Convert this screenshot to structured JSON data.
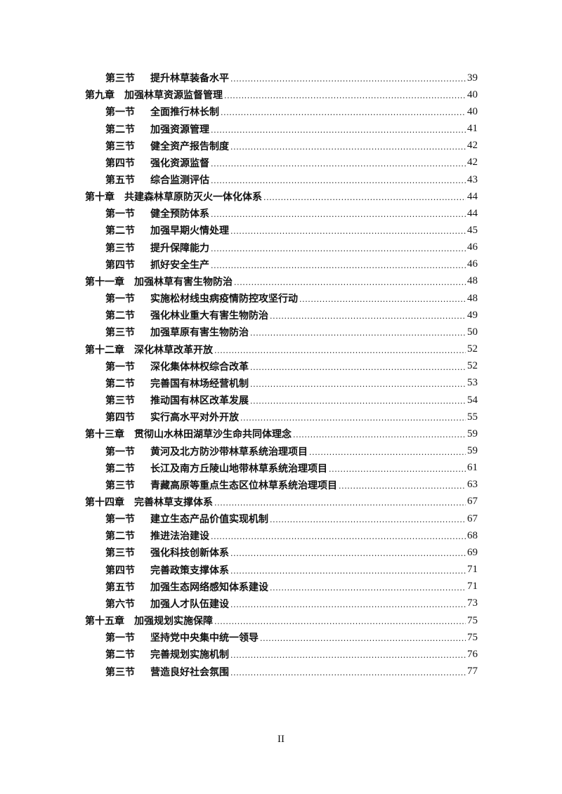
{
  "toc": [
    {
      "level": "section",
      "label": "第三节",
      "title": "提升林草装备水平",
      "page": "39"
    },
    {
      "level": "chapter",
      "label": "第九章",
      "title": "加强林草资源监督管理",
      "page": "40"
    },
    {
      "level": "section",
      "label": "第一节",
      "title": "全面推行林长制",
      "page": "40"
    },
    {
      "level": "section",
      "label": "第二节",
      "title": "加强资源管理",
      "page": "41"
    },
    {
      "level": "section",
      "label": "第三节",
      "title": "健全资产报告制度",
      "page": "42"
    },
    {
      "level": "section",
      "label": "第四节",
      "title": "强化资源监督",
      "page": "42"
    },
    {
      "level": "section",
      "label": "第五节",
      "title": "综合监测评估",
      "page": "43"
    },
    {
      "level": "chapter",
      "label": "第十章",
      "title": "共建森林草原防灭火一体化体系",
      "page": "44"
    },
    {
      "level": "section",
      "label": "第一节",
      "title": "健全预防体系",
      "page": "44"
    },
    {
      "level": "section",
      "label": "第二节",
      "title": "加强早期火情处理",
      "page": "45"
    },
    {
      "level": "section",
      "label": "第三节",
      "title": "提升保障能力",
      "page": "46"
    },
    {
      "level": "section",
      "label": "第四节",
      "title": "抓好安全生产",
      "page": "46"
    },
    {
      "level": "chapter",
      "label": "第十一章",
      "title": "加强林草有害生物防治",
      "page": "48"
    },
    {
      "level": "section",
      "label": "第一节",
      "title": "实施松材线虫病疫情防控攻坚行动",
      "page": "48"
    },
    {
      "level": "section",
      "label": "第二节",
      "title": "强化林业重大有害生物防治",
      "page": "49"
    },
    {
      "level": "section",
      "label": "第三节",
      "title": "加强草原有害生物防治",
      "page": "50"
    },
    {
      "level": "chapter",
      "label": "第十二章",
      "title": "深化林草改革开放",
      "page": "52"
    },
    {
      "level": "section",
      "label": "第一节",
      "title": "深化集体林权综合改革",
      "page": "52"
    },
    {
      "level": "section",
      "label": "第二节",
      "title": "完善国有林场经营机制",
      "page": "53"
    },
    {
      "level": "section",
      "label": "第三节",
      "title": "推动国有林区改革发展",
      "page": "54"
    },
    {
      "level": "section",
      "label": "第四节",
      "title": "实行高水平对外开放",
      "page": "55"
    },
    {
      "level": "chapter",
      "label": "第十三章",
      "title": "贯彻山水林田湖草沙生命共同体理念",
      "page": "59"
    },
    {
      "level": "section",
      "label": "第一节",
      "title": "黄河及北方防沙带林草系统治理项目",
      "page": "59"
    },
    {
      "level": "section",
      "label": "第二节",
      "title": "长江及南方丘陵山地带林草系统治理项目",
      "page": "61"
    },
    {
      "level": "section",
      "label": "第三节",
      "title": "青藏高原等重点生态区位林草系统治理项目",
      "page": "63"
    },
    {
      "level": "chapter",
      "label": "第十四章",
      "title": "完善林草支撑体系",
      "page": "67"
    },
    {
      "level": "section",
      "label": "第一节",
      "title": "建立生态产品价值实现机制",
      "page": "67"
    },
    {
      "level": "section",
      "label": "第二节",
      "title": "推进法治建设",
      "page": "68"
    },
    {
      "level": "section",
      "label": "第三节",
      "title": "强化科技创新体系",
      "page": "69"
    },
    {
      "level": "section",
      "label": "第四节",
      "title": "完善政策支撑体系",
      "page": "71"
    },
    {
      "level": "section",
      "label": "第五节",
      "title": "加强生态网络感知体系建设",
      "page": "71"
    },
    {
      "level": "section",
      "label": "第六节",
      "title": "加强人才队伍建设",
      "page": "73"
    },
    {
      "level": "chapter",
      "label": "第十五章",
      "title": "加强规划实施保障",
      "page": "75"
    },
    {
      "level": "section",
      "label": "第一节",
      "title": "坚持党中央集中统一领导",
      "page": "75"
    },
    {
      "level": "section",
      "label": "第二节",
      "title": "完善规划实施机制",
      "page": "76"
    },
    {
      "level": "section",
      "label": "第三节",
      "title": "营造良好社会氛围",
      "page": "77"
    }
  ],
  "footer": {
    "page_number": "II"
  }
}
